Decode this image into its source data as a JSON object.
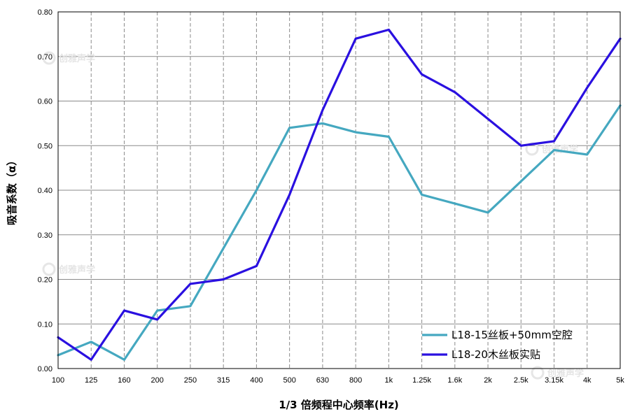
{
  "chart_data": {
    "type": "line",
    "xlabel": "1/3 倍频程中心频率(Hz)",
    "ylabel": "吸音系数（α）",
    "ylim": [
      0,
      0.8
    ],
    "y_ticks": [
      "0.00",
      "0.10",
      "0.20",
      "0.30",
      "0.40",
      "0.50",
      "0.60",
      "0.70",
      "0.80"
    ],
    "categories": [
      "100",
      "125",
      "160",
      "200",
      "250",
      "315",
      "400",
      "500",
      "630",
      "800",
      "1k",
      "1.25k",
      "1.6k",
      "2k",
      "2.5k",
      "3.15k",
      "4k",
      "5k"
    ],
    "grid": {
      "horizontal": "solid",
      "vertical": "dashed"
    },
    "legend_position": "bottom-right",
    "series": [
      {
        "name": "L18-15丝板+50mm空腔",
        "color": "#45a8c0",
        "values": [
          0.03,
          0.06,
          0.02,
          0.13,
          0.14,
          0.27,
          0.4,
          0.54,
          0.55,
          0.53,
          0.52,
          0.39,
          0.37,
          0.35,
          0.42,
          0.49,
          0.48,
          0.59
        ]
      },
      {
        "name": "L18-20木丝板实贴",
        "color": "#2a10e0",
        "values": [
          0.07,
          0.02,
          0.13,
          0.11,
          0.19,
          0.2,
          0.23,
          0.39,
          0.58,
          0.74,
          0.76,
          0.66,
          0.62,
          0.56,
          0.5,
          0.51,
          0.63,
          0.74
        ]
      }
    ]
  },
  "watermark": {
    "text": "创雅声学",
    "icon": "logo-icon"
  }
}
